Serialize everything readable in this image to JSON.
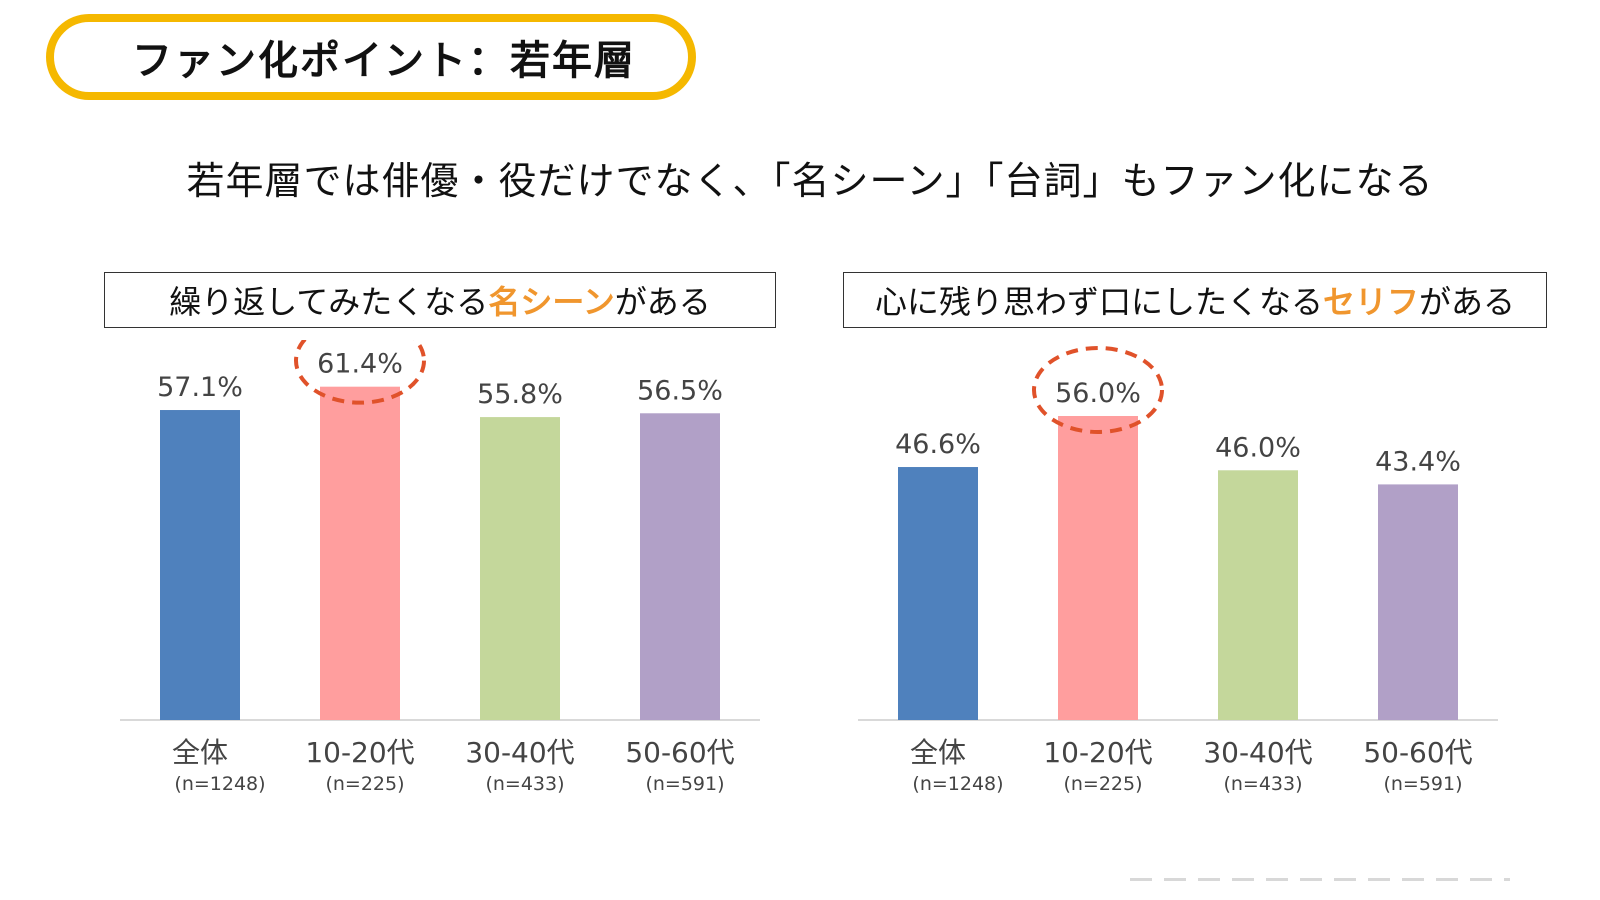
{
  "title": "ファン化ポイント：若年層",
  "headline": "若年層では俳優・役だけでなく、「名シーン」「台詞」もファン化になる",
  "panels": [
    {
      "prefix": "繰り返してみたくなる",
      "highlight": "名シーン",
      "suffix": "がある"
    },
    {
      "prefix": "心に残り思わず口にしたくなる",
      "highlight": "セリフ",
      "suffix": "がある"
    }
  ],
  "colors": {
    "title_border": "#F5B800",
    "highlight_text": "#F0962E",
    "circle": "#E0522A",
    "bars": [
      "#4F81BD",
      "#FF9E9E",
      "#C4D79B",
      "#B1A0C7"
    ]
  },
  "chart_data": [
    {
      "type": "bar",
      "categories": [
        "全体",
        "10-20代",
        "30-40代",
        "50-60代"
      ],
      "sample_sizes": [
        "(n=1248)",
        "(n=225)",
        "(n=433)",
        "(n=591)"
      ],
      "values": [
        57.1,
        61.4,
        55.8,
        56.5
      ],
      "labels": [
        "57.1%",
        "61.4%",
        "55.8%",
        "56.5%"
      ],
      "highlighted_category": "10-20代",
      "ylim": [
        0,
        70
      ],
      "grid": false,
      "legend": "none"
    },
    {
      "type": "bar",
      "categories": [
        "全体",
        "10-20代",
        "30-40代",
        "50-60代"
      ],
      "sample_sizes": [
        "(n=1248)",
        "(n=225)",
        "(n=433)",
        "(n=591)"
      ],
      "values": [
        46.6,
        56.0,
        46.0,
        43.4
      ],
      "labels": [
        "46.6%",
        "56.0%",
        "46.0%",
        "43.4%"
      ],
      "highlighted_category": "10-20代",
      "ylim": [
        0,
        70
      ],
      "grid": false,
      "legend": "none"
    }
  ]
}
